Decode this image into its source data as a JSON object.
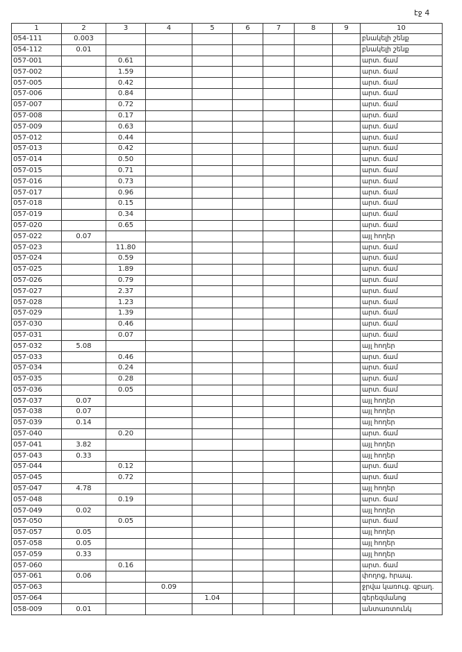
{
  "page_label": "էջ 4",
  "table": {
    "header": [
      "1",
      "2",
      "3",
      "4",
      "5",
      "6",
      "7",
      "8",
      "9",
      "10"
    ],
    "rows": [
      {
        "1": "054-111",
        "2": "0.003",
        "10": "բնակելի շենք"
      },
      {
        "1": "054-112",
        "2": "0.01",
        "10": "բնակելի շենք"
      },
      {
        "1": "057-001",
        "3": "0.61",
        "10": "արտ. ճամ"
      },
      {
        "1": "057-002",
        "3": "1.59",
        "10": "արտ. ճամ"
      },
      {
        "1": "057-005",
        "3": "0.42",
        "10": "արտ. ճամ"
      },
      {
        "1": "057-006",
        "3": "0.84",
        "10": "արտ. ճամ"
      },
      {
        "1": "057-007",
        "3": "0.72",
        "10": "արտ. ճամ"
      },
      {
        "1": "057-008",
        "3": "0.17",
        "10": "արտ. ճամ"
      },
      {
        "1": "057-009",
        "3": "0.63",
        "10": "արտ. ճամ"
      },
      {
        "1": "057-012",
        "3": "0.44",
        "10": "արտ. ճամ"
      },
      {
        "1": "057-013",
        "3": "0.42",
        "10": "արտ. ճամ"
      },
      {
        "1": "057-014",
        "3": "0.50",
        "10": "արտ. ճամ"
      },
      {
        "1": "057-015",
        "3": "0.71",
        "10": "արտ. ճամ"
      },
      {
        "1": "057-016",
        "3": "0.73",
        "10": "արտ. ճամ"
      },
      {
        "1": "057-017",
        "3": "0.96",
        "10": "արտ. ճամ"
      },
      {
        "1": "057-018",
        "3": "0.15",
        "10": "արտ. ճամ"
      },
      {
        "1": "057-019",
        "3": "0.34",
        "10": "արտ. ճամ"
      },
      {
        "1": "057-020",
        "3": "0.65",
        "10": "արտ. ճամ"
      },
      {
        "1": "057-022",
        "2": "0.07",
        "10": "այլ հողեր"
      },
      {
        "1": "057-023",
        "3": "11.80",
        "10": "արտ. ճամ"
      },
      {
        "1": "057-024",
        "3": "0.59",
        "10": "արտ. ճամ"
      },
      {
        "1": "057-025",
        "3": "1.89",
        "10": "արտ. ճամ"
      },
      {
        "1": "057-026",
        "3": "0.79",
        "10": "արտ. ճամ"
      },
      {
        "1": "057-027",
        "3": "2.37",
        "10": "արտ. ճամ"
      },
      {
        "1": "057-028",
        "3": "1.23",
        "10": "արտ. ճամ"
      },
      {
        "1": "057-029",
        "3": "1.39",
        "10": "արտ. ճամ"
      },
      {
        "1": "057-030",
        "3": "0.46",
        "10": "արտ. ճամ"
      },
      {
        "1": "057-031",
        "3": "0.07",
        "10": "արտ. ճամ"
      },
      {
        "1": "057-032",
        "2": "5.08",
        "10": "այլ հողեր"
      },
      {
        "1": "057-033",
        "3": "0.46",
        "10": "արտ. ճամ"
      },
      {
        "1": "057-034",
        "3": "0.24",
        "10": "արտ. ճամ"
      },
      {
        "1": "057-035",
        "3": "0.28",
        "10": "արտ. ճամ"
      },
      {
        "1": "057-036",
        "3": "0.05",
        "10": "արտ. ճամ"
      },
      {
        "1": "057-037",
        "2": "0.07",
        "10": "այլ հողեր"
      },
      {
        "1": "057-038",
        "2": "0.07",
        "10": "այլ հողեր"
      },
      {
        "1": "057-039",
        "2": "0.14",
        "10": "այլ հողեր"
      },
      {
        "1": "057-040",
        "3": "0.20",
        "10": "արտ. ճամ"
      },
      {
        "1": "057-041",
        "2": "3.82",
        "10": "այլ հողեր"
      },
      {
        "1": "057-043",
        "2": "0.33",
        "10": "այլ հողեր"
      },
      {
        "1": "057-044",
        "3": "0.12",
        "10": "արտ. ճամ"
      },
      {
        "1": "057-045",
        "3": "0.72",
        "10": "արտ. ճամ"
      },
      {
        "1": "057-047",
        "2": "4.78",
        "10": "այլ հողեր"
      },
      {
        "1": "057-048",
        "3": "0.19",
        "10": "արտ. ճամ"
      },
      {
        "1": "057-049",
        "2": "0.02",
        "10": "այլ հողեր"
      },
      {
        "1": "057-050",
        "3": "0.05",
        "10": "արտ. ճամ"
      },
      {
        "1": "057-057",
        "2": "0.05",
        "10": "այլ հողեր"
      },
      {
        "1": "057-058",
        "2": "0.05",
        "10": "այլ հողեր"
      },
      {
        "1": "057-059",
        "2": "0.33",
        "10": "այլ հողեր"
      },
      {
        "1": "057-060",
        "3": "0.16",
        "10": "արտ. ճամ"
      },
      {
        "1": "057-061",
        "2": "0.06",
        "10": "փողոց, հրապ."
      },
      {
        "1": "057-063",
        "4": "0.09",
        "10": "ջրվա կառուց. զբաղ."
      },
      {
        "1": "057-064",
        "5": "1.04",
        "10": "գերեզմանոց"
      },
      {
        "1": "058-009",
        "2": "0.01",
        "10": "անտառտունկ"
      }
    ]
  }
}
